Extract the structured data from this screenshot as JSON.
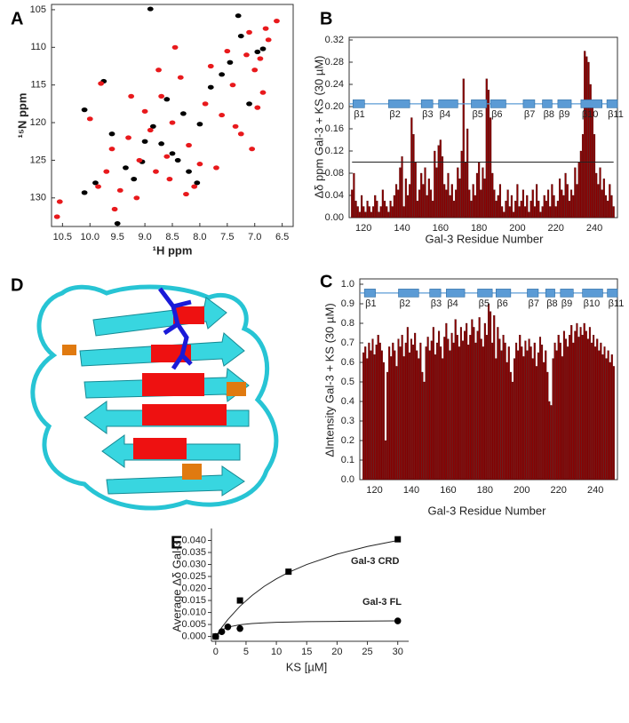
{
  "chart_data": [
    {
      "type": "scatter",
      "panel_label": "A",
      "x_label": "¹H ppm",
      "y_label": "¹⁵N ppm",
      "xlim": [
        10.7,
        6.3
      ],
      "ylim": [
        133.8,
        104.3
      ],
      "xticks": [
        10.5,
        {
          "value": 10,
          "label": "10.0"
        },
        9.5,
        {
          "value": 9,
          "label": "9.0"
        },
        8.5,
        {
          "value": 8,
          "label": "8.0"
        },
        7.5,
        {
          "value": 7,
          "label": "7.0"
        },
        6.5
      ],
      "yticks": [
        105,
        110,
        115,
        120,
        125,
        130
      ],
      "series": [
        {
          "color": "#000000",
          "x": [
            8.9,
            7.3,
            6.85,
            9.75,
            10.1,
            8.3,
            8.0,
            7.45,
            9.6,
            8.7,
            8.5,
            8.2,
            9.05,
            9.35,
            8.05,
            7.6,
            8.85,
            9.2,
            10.1,
            9.9,
            9.5,
            7.1,
            6.95,
            8.6,
            8.4,
            9.0,
            7.8,
            7.25
          ],
          "values": [
            104.9,
            105.8,
            110.2,
            114.5,
            118.3,
            118.8,
            120.2,
            112.0,
            121.5,
            122.8,
            124.1,
            126.5,
            125.2,
            126.0,
            128.0,
            113.6,
            120.5,
            127.5,
            129.3,
            128.0,
            133.4,
            117.5,
            110.6,
            116.9,
            125.0,
            122.5,
            115.3,
            108.5
          ]
        },
        {
          "color": "#e8191c",
          "x": [
            10.55,
            10.0,
            9.8,
            9.6,
            9.7,
            9.45,
            9.3,
            9.1,
            9.0,
            8.9,
            8.8,
            8.7,
            8.6,
            8.5,
            8.35,
            8.2,
            8.1,
            7.9,
            7.8,
            7.6,
            7.5,
            7.4,
            7.25,
            7.1,
            7.0,
            6.9,
            6.8,
            6.75,
            6.85,
            7.05,
            8.25,
            8.55,
            9.15,
            9.55,
            9.85,
            8.0,
            7.7,
            7.35,
            6.95,
            8.75,
            9.25,
            8.45,
            7.15,
            10.6,
            6.6
          ],
          "values": [
            130.5,
            119.5,
            114.8,
            123.5,
            126.5,
            129.0,
            122.0,
            125.0,
            118.5,
            121.0,
            126.5,
            116.5,
            124.5,
            120.0,
            114.0,
            123.0,
            128.5,
            117.5,
            112.5,
            119.0,
            110.5,
            115.0,
            121.5,
            108.0,
            113.0,
            111.5,
            107.5,
            109.0,
            116.0,
            123.5,
            129.5,
            127.5,
            130.0,
            131.5,
            128.5,
            125.5,
            126.0,
            120.5,
            118.0,
            113.0,
            116.5,
            110.0,
            111.0,
            132.5,
            106.5
          ]
        }
      ]
    },
    {
      "type": "bar",
      "panel_label": "B",
      "x_label": "Gal-3 Residue Number",
      "y_label": "Δδ ppm Gal-3 + KS (30 µM)",
      "color": "#8b0000",
      "xlim": [
        112.5,
        252
      ],
      "ylim": [
        0,
        0.32
      ],
      "xticks": [
        120,
        140,
        160,
        180,
        200,
        220,
        240
      ],
      "yticks": [
        {
          "value": 0,
          "label": "0.00"
        },
        0.04,
        0.08,
        0.12,
        0.16,
        {
          "value": 0.2,
          "label": "0.20"
        },
        0.24,
        0.28,
        0.32
      ],
      "reference_line": 0.1,
      "secondary_structure_level": 0.205,
      "secondary_structure": [
        {
          "label": "β1",
          "start": 114.5,
          "end": 120.5
        },
        {
          "label": "β2",
          "start": 133,
          "end": 144
        },
        {
          "label": "β3",
          "start": 150,
          "end": 156
        },
        {
          "label": "β4",
          "start": 159,
          "end": 169
        },
        {
          "label": "β5",
          "start": 176,
          "end": 184
        },
        {
          "label": "β6",
          "start": 186,
          "end": 194
        },
        {
          "label": "β7",
          "start": 203,
          "end": 209
        },
        {
          "label": "β8",
          "start": 213,
          "end": 218
        },
        {
          "label": "β9",
          "start": 221,
          "end": 228
        },
        {
          "label": "β10",
          "start": 233,
          "end": 244
        },
        {
          "label": "β11",
          "start": 246.5,
          "end": 252
        }
      ],
      "x": [
        114,
        115,
        116,
        117,
        118,
        119,
        120,
        121,
        122,
        123,
        124,
        125,
        126,
        127,
        128,
        129,
        130,
        131,
        132,
        133,
        134,
        135,
        136,
        137,
        138,
        139,
        140,
        141,
        142,
        143,
        144,
        145,
        146,
        147,
        148,
        149,
        150,
        151,
        152,
        153,
        154,
        155,
        156,
        157,
        158,
        159,
        160,
        161,
        162,
        163,
        164,
        165,
        166,
        167,
        168,
        169,
        170,
        171,
        172,
        173,
        174,
        175,
        176,
        177,
        178,
        179,
        180,
        181,
        182,
        183,
        184,
        185,
        186,
        187,
        188,
        189,
        190,
        191,
        192,
        193,
        194,
        195,
        196,
        197,
        198,
        199,
        200,
        201,
        202,
        203,
        204,
        205,
        206,
        207,
        208,
        209,
        210,
        211,
        212,
        213,
        214,
        215,
        216,
        217,
        218,
        219,
        220,
        221,
        222,
        223,
        224,
        225,
        226,
        227,
        228,
        229,
        230,
        231,
        232,
        233,
        234,
        235,
        236,
        237,
        238,
        239,
        240,
        241,
        242,
        243,
        244,
        245,
        246,
        247,
        248,
        249,
        250
      ],
      "values": [
        0.05,
        0.08,
        0.03,
        0.02,
        0.01,
        0.04,
        0.02,
        0.01,
        0.03,
        0.02,
        0.01,
        0.02,
        0.04,
        0.03,
        0.01,
        0.02,
        0.05,
        0.03,
        0.02,
        0.01,
        0.03,
        0.02,
        0.04,
        0.06,
        0.05,
        0.09,
        0.11,
        0.02,
        0.07,
        0.04,
        0.06,
        0.18,
        0.15,
        0.1,
        0.03,
        0.05,
        0.08,
        0.06,
        0.09,
        0.04,
        0.07,
        0.05,
        0.03,
        0.12,
        0.09,
        0.13,
        0.14,
        0.11,
        0.06,
        0.05,
        0.08,
        0.04,
        0.06,
        0.03,
        0.05,
        0.09,
        0.07,
        0.12,
        0.25,
        0.1,
        0.16,
        0.05,
        0.03,
        0.06,
        0.04,
        0.08,
        0.1,
        0.05,
        0.09,
        0.07,
        0.25,
        0.23,
        0.18,
        0.08,
        0.05,
        0.03,
        0.04,
        0.06,
        0.02,
        0.01,
        0.03,
        0.05,
        0.02,
        0.04,
        0.01,
        0.03,
        0.06,
        0.02,
        0.03,
        0.05,
        0.02,
        0.04,
        0.01,
        0.03,
        0.05,
        0.02,
        0.06,
        0.03,
        0.01,
        0.02,
        0.04,
        0.03,
        0.05,
        0.02,
        0.06,
        0.04,
        0.02,
        0.03,
        0.07,
        0.05,
        0.04,
        0.08,
        0.06,
        0.03,
        0.05,
        0.04,
        0.09,
        0.06,
        0.1,
        0.12,
        0.15,
        0.3,
        0.29,
        0.28,
        0.24,
        0.2,
        0.15,
        0.08,
        0.06,
        0.09,
        0.05,
        0.07,
        0.04,
        0.03,
        0.06,
        0.04,
        0.02
      ]
    },
    {
      "type": "bar",
      "panel_label": "C",
      "x_label": "Gal-3 Residue Number",
      "y_label": "ΔIntensity Gal-3 + KS (30 µM)",
      "color": "#8b0000",
      "xlim": [
        112,
        252
      ],
      "ylim": [
        0,
        1
      ],
      "xticks": [
        120,
        140,
        160,
        180,
        200,
        220,
        240
      ],
      "yticks": [
        {
          "value": 0,
          "label": "0.0"
        },
        0.1,
        0.2,
        0.3,
        0.4,
        0.5,
        0.6,
        0.7,
        0.8,
        0.9,
        {
          "value": 1,
          "label": "1.0"
        }
      ],
      "secondary_structure_level": 0.955,
      "secondary_structure": [
        {
          "label": "β1",
          "start": 114.5,
          "end": 120.5
        },
        {
          "label": "β2",
          "start": 133,
          "end": 144
        },
        {
          "label": "β3",
          "start": 150,
          "end": 156
        },
        {
          "label": "β4",
          "start": 159,
          "end": 169
        },
        {
          "label": "β5",
          "start": 176,
          "end": 184
        },
        {
          "label": "β6",
          "start": 186,
          "end": 194
        },
        {
          "label": "β7",
          "start": 203,
          "end": 209
        },
        {
          "label": "β8",
          "start": 213,
          "end": 218
        },
        {
          "label": "β9",
          "start": 221,
          "end": 228
        },
        {
          "label": "β10",
          "start": 233,
          "end": 244
        },
        {
          "label": "β11",
          "start": 246.5,
          "end": 252
        }
      ],
      "x": [
        114,
        115,
        116,
        117,
        118,
        119,
        120,
        121,
        122,
        123,
        124,
        125,
        126,
        127,
        128,
        129,
        130,
        131,
        132,
        133,
        134,
        135,
        136,
        137,
        138,
        139,
        140,
        141,
        142,
        143,
        144,
        145,
        146,
        147,
        148,
        149,
        150,
        151,
        152,
        153,
        154,
        155,
        156,
        157,
        158,
        159,
        160,
        161,
        162,
        163,
        164,
        165,
        166,
        167,
        168,
        169,
        170,
        171,
        172,
        173,
        174,
        175,
        176,
        177,
        178,
        179,
        180,
        181,
        182,
        183,
        184,
        185,
        186,
        187,
        188,
        189,
        190,
        191,
        192,
        193,
        194,
        195,
        196,
        197,
        198,
        199,
        200,
        201,
        202,
        203,
        204,
        205,
        206,
        207,
        208,
        209,
        210,
        211,
        212,
        213,
        214,
        215,
        216,
        217,
        218,
        219,
        220,
        221,
        222,
        223,
        224,
        225,
        226,
        227,
        228,
        229,
        230,
        231,
        232,
        233,
        234,
        235,
        236,
        237,
        238,
        239,
        240,
        241,
        242,
        243,
        244,
        245,
        246,
        247,
        248,
        249,
        250
      ],
      "values": [
        0.65,
        0.68,
        0.62,
        0.7,
        0.66,
        0.72,
        0.64,
        0.69,
        0.74,
        0.7,
        0.66,
        0.6,
        0.2,
        0.55,
        0.68,
        0.63,
        0.7,
        0.66,
        0.58,
        0.72,
        0.68,
        0.74,
        0.63,
        0.7,
        0.78,
        0.65,
        0.72,
        0.69,
        0.75,
        0.66,
        0.62,
        0.7,
        0.55,
        0.5,
        0.68,
        0.73,
        0.66,
        0.71,
        0.78,
        0.64,
        0.7,
        0.76,
        0.68,
        0.62,
        0.73,
        0.8,
        0.72,
        0.66,
        0.75,
        0.7,
        0.82,
        0.74,
        0.68,
        0.78,
        0.71,
        0.76,
        0.8,
        0.69,
        0.74,
        0.82,
        0.78,
        0.7,
        0.76,
        0.83,
        0.72,
        0.68,
        0.8,
        0.74,
        0.9,
        0.86,
        0.7,
        0.84,
        0.62,
        0.78,
        0.72,
        0.66,
        0.74,
        0.7,
        0.6,
        0.68,
        0.55,
        0.5,
        0.62,
        0.7,
        0.66,
        0.74,
        0.68,
        0.63,
        0.71,
        0.66,
        0.72,
        0.68,
        0.62,
        0.7,
        0.58,
        0.65,
        0.73,
        0.69,
        0.6,
        0.66,
        0.55,
        0.4,
        0.38,
        0.62,
        0.7,
        0.66,
        0.74,
        0.7,
        0.63,
        0.76,
        0.72,
        0.68,
        0.74,
        0.79,
        0.7,
        0.76,
        0.8,
        0.73,
        0.78,
        0.74,
        0.8,
        0.76,
        0.72,
        0.78,
        0.7,
        0.74,
        0.68,
        0.72,
        0.66,
        0.7,
        0.64,
        0.68,
        0.62,
        0.66,
        0.6,
        0.64,
        0.58
      ]
    },
    {
      "type": "scatter-fit",
      "panel_label": "E",
      "x_label": "KS [µM]",
      "y_label": "Average Δδ Gal-3",
      "xlim": [
        -0.7,
        31.8
      ],
      "ylim": [
        -0.002,
        0.045
      ],
      "xticks": [
        0,
        5,
        10,
        15,
        20,
        25,
        30
      ],
      "yticks": [
        {
          "value": 0,
          "label": "0.000"
        },
        0.005,
        {
          "value": 0.01,
          "label": "0.010"
        },
        0.015,
        {
          "value": 0.02,
          "label": "0.020"
        },
        0.025,
        {
          "value": 0.03,
          "label": "0.030"
        },
        0.035,
        {
          "value": 0.04,
          "label": "0.040"
        }
      ],
      "series": [
        {
          "name": "Gal-3 CRD",
          "marker": "square",
          "color": "#000000",
          "x": [
            0,
            4,
            12,
            30
          ],
          "values": [
            0,
            0.015,
            0.027,
            0.0405
          ]
        },
        {
          "name": "Gal-3 FL",
          "marker": "circle",
          "color": "#000000",
          "x": [
            0,
            1,
            2,
            4,
            30
          ],
          "values": [
            0,
            0.002,
            0.004,
            0.0033,
            0.0065
          ]
        }
      ],
      "fits": [
        {
          "x": [
            0,
            1,
            2,
            4,
            6,
            8,
            10,
            12,
            15,
            20,
            25,
            30
          ],
          "values": [
            0,
            0.00375,
            0.00706,
            0.0126,
            0.0171,
            0.0209,
            0.024,
            0.0267,
            0.03,
            0.0343,
            0.0375,
            0.04
          ]
        },
        {
          "x": [
            0,
            1,
            2,
            4,
            6,
            8,
            10,
            12,
            15,
            20,
            25,
            30
          ],
          "values": [
            0,
            0.0027,
            0.0039,
            0.0049,
            0.0054,
            0.0057,
            0.0059,
            0.006,
            0.0062,
            0.0063,
            0.0064,
            0.0065
          ]
        }
      ]
    }
  ],
  "structure_panel": {
    "panel_label": "D"
  }
}
